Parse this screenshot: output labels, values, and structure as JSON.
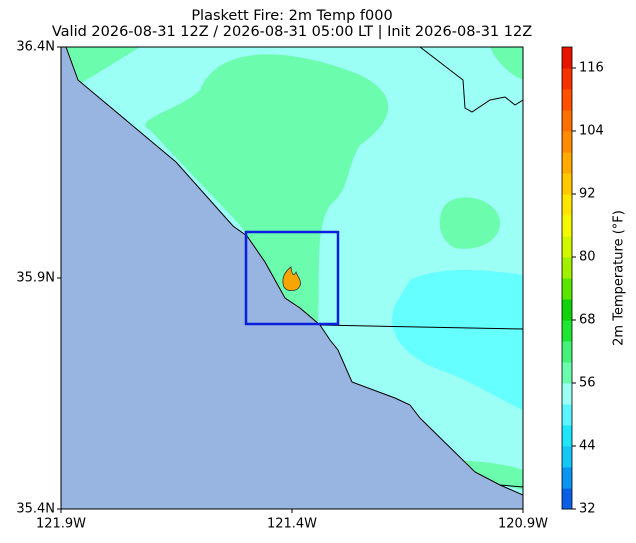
{
  "title": "Plaskett Fire: 2m Temp f000",
  "subtitle": "Valid 2026-08-31 12Z / 2026-08-31 05:00 LT | Init 2026-08-31 12Z",
  "map": {
    "xlim": [
      -121.9,
      -120.9
    ],
    "ylim": [
      35.4,
      36.4
    ],
    "xticks": [
      {
        "value": -121.9,
        "label": "121.9W"
      },
      {
        "value": -121.4,
        "label": "121.4W"
      },
      {
        "value": -120.9,
        "label": "120.9W"
      }
    ],
    "yticks": [
      {
        "value": 35.4,
        "label": "35.4N"
      },
      {
        "value": 35.9,
        "label": "35.9N"
      },
      {
        "value": 36.4,
        "label": "36.4N"
      }
    ]
  },
  "colorbar": {
    "label": "2m Temperature (°F)",
    "lim": [
      32,
      120
    ],
    "ticks": [
      32,
      44,
      56,
      68,
      80,
      92,
      104,
      116
    ],
    "colors": [
      "#0a5fe6",
      "#0a96f0",
      "#14c8f5",
      "#1ee6fa",
      "#5af5ff",
      "#9cfff6",
      "#6cfcae",
      "#44f27a",
      "#1ee632",
      "#10d20a",
      "#5ae600",
      "#a0f000",
      "#d2f800",
      "#f5fa00",
      "#ffe600",
      "#ffc800",
      "#ffaa00",
      "#ff8c00",
      "#ff6e00",
      "#ff5000",
      "#f53200",
      "#e61400"
    ]
  }
}
